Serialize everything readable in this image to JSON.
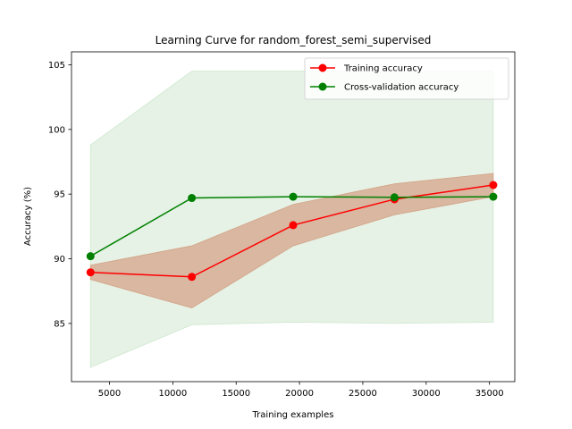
{
  "chart_data": {
    "type": "line",
    "title": "Learning Curve for random_forest_semi_supervised",
    "xlabel": "Training examples",
    "ylabel": "Accuracy (%)",
    "xlim": [
      2000,
      37000
    ],
    "ylim": [
      80.5,
      106
    ],
    "xticks": [
      5000,
      10000,
      15000,
      20000,
      25000,
      30000,
      35000
    ],
    "yticks": [
      85,
      90,
      95,
      100,
      105
    ],
    "grid": false,
    "legend_position": "top-right",
    "x": [
      3500,
      11500,
      19500,
      27500,
      35300
    ],
    "series": [
      {
        "name": "Training accuracy",
        "color": "#ff0000",
        "band_color": "#d4a388",
        "values": [
          88.95,
          88.6,
          92.6,
          94.6,
          95.7
        ],
        "band_lower": [
          88.4,
          86.2,
          91.0,
          93.4,
          94.8
        ],
        "band_upper": [
          89.5,
          91.0,
          94.2,
          95.8,
          96.6
        ]
      },
      {
        "name": "Cross-validation accuracy",
        "color": "#008000",
        "band_color": "#cfe8cf",
        "values": [
          90.2,
          94.7,
          94.8,
          94.75,
          94.8
        ],
        "band_lower": [
          81.6,
          84.9,
          85.1,
          85.0,
          85.1
        ],
        "band_upper": [
          98.8,
          104.5,
          104.5,
          104.5,
          104.5
        ]
      }
    ]
  }
}
